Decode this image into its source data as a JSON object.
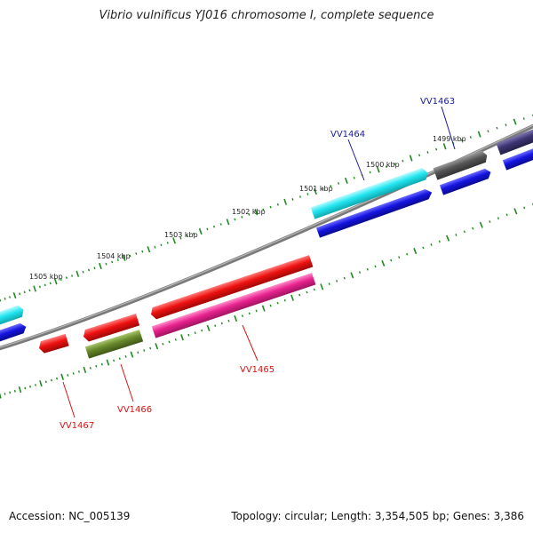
{
  "title": "Vibrio vulnificus YJ016 chromosome I, complete sequence",
  "footer": {
    "accession": "Accession: NC_005139",
    "summary": "Topology: circular; Length: 3,354,505 bp; Genes: 3,386"
  },
  "scale_labels": [
    "1499 kbp",
    "1500 kbp",
    "1501 kbp",
    "1502 kbp",
    "1503 kbp",
    "1504 kbp",
    "1505 kbp"
  ],
  "gene_labels": {
    "vv1463": "VV1463",
    "vv1464": "VV1464",
    "vv1465": "VV1465",
    "vv1466": "VV1466",
    "vv1467": "VV1467"
  },
  "colors": {
    "forward_label": "#1a1aa8",
    "reverse_label": "#dd1111",
    "backbone": "#7a7a7a",
    "tick": "#1f8a1f",
    "cyan": "#22e6f0",
    "blue": "#1414e0",
    "gray": "#555555",
    "purple": "#3d3573",
    "red": "#ee1111",
    "magenta": "#e8228f",
    "olive": "#66882a"
  }
}
